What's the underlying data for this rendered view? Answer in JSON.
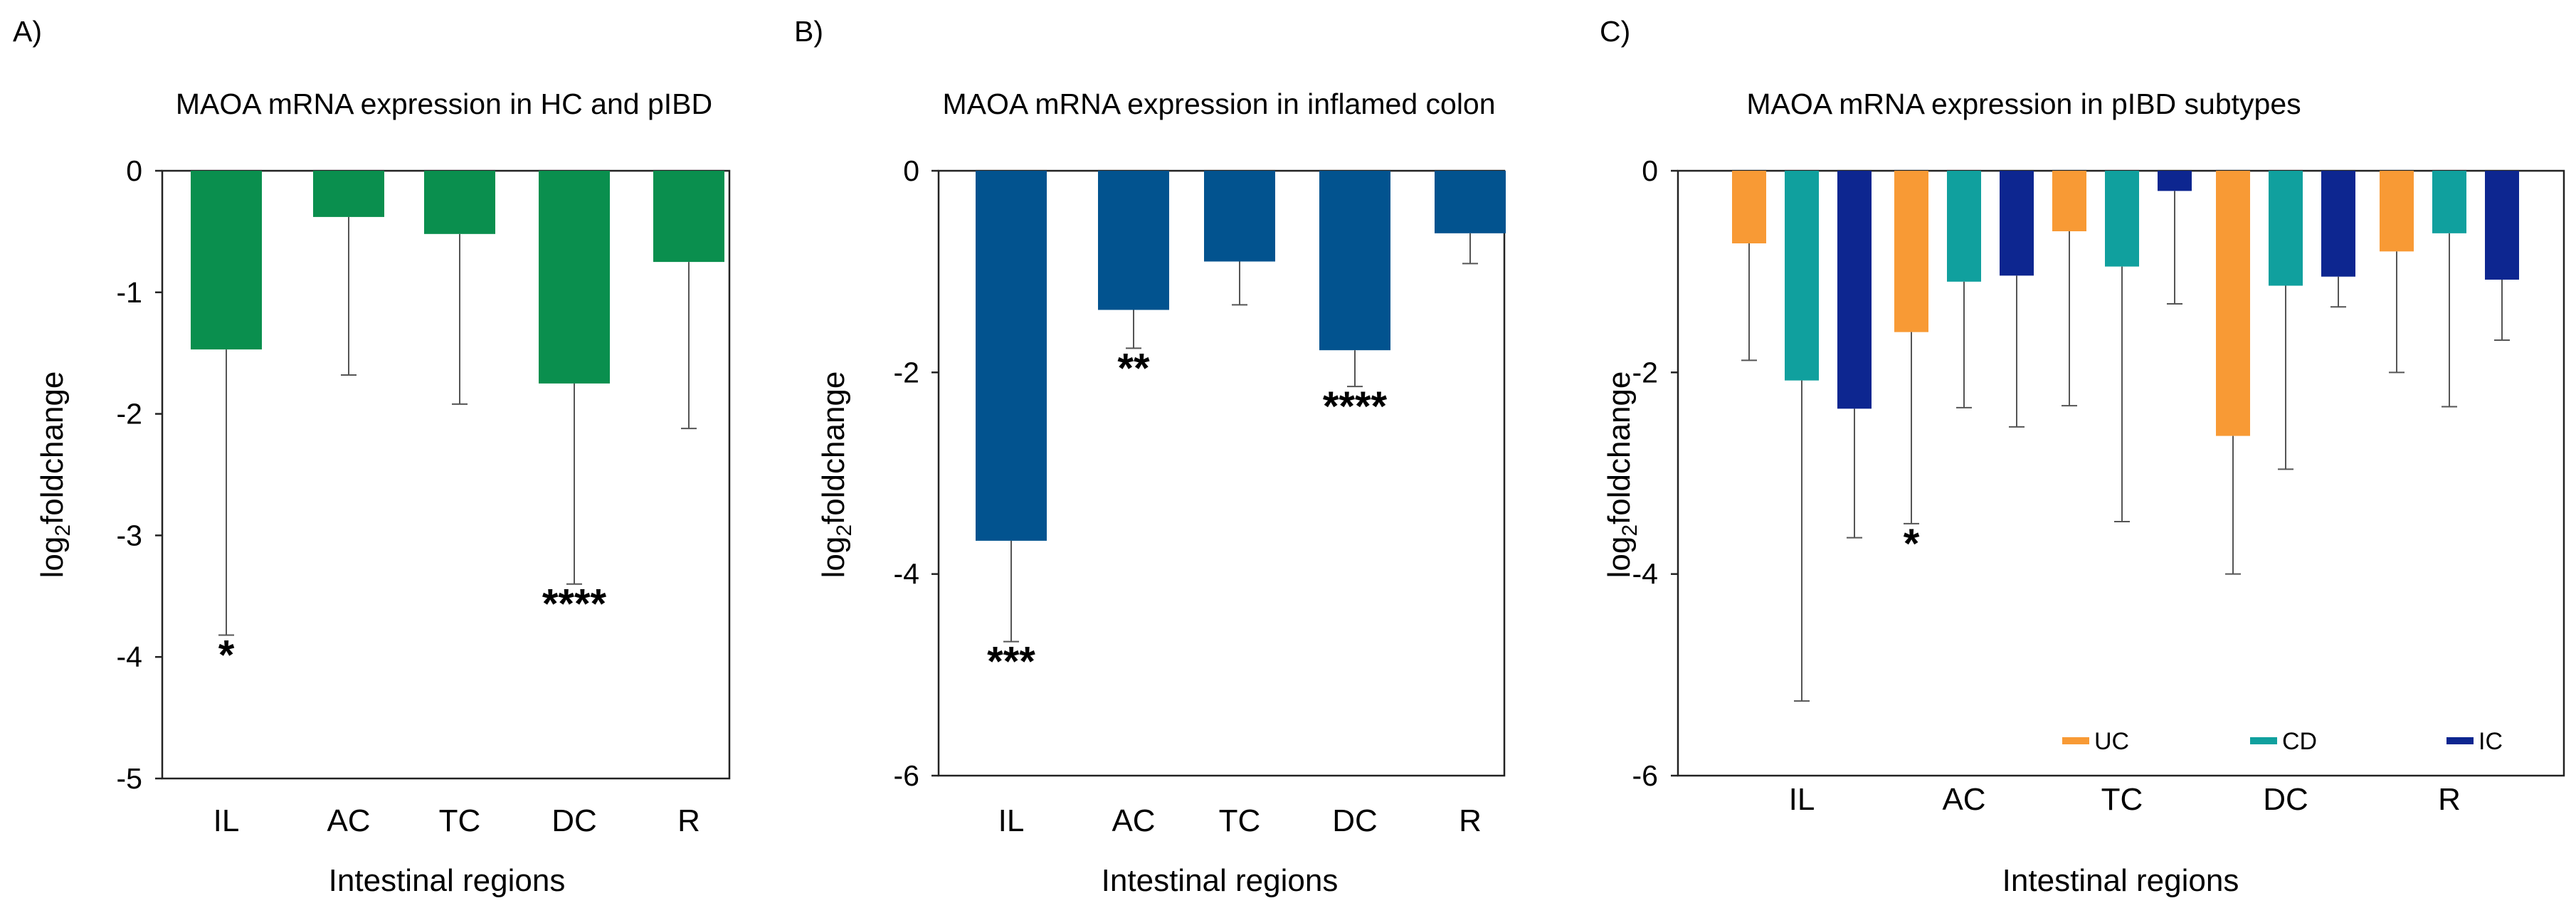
{
  "chart_data": [
    {
      "panel": "A)",
      "type": "bar",
      "title": "MAOA mRNA expression in HC and pIBD",
      "xlabel": "Intestinal regions",
      "ylabel_main": "log",
      "ylabel_sub": "2",
      "ylabel_rest": "foldchange",
      "ylim": [
        -5,
        0
      ],
      "yticks": [
        0,
        -1,
        -2,
        -3,
        -4,
        -5
      ],
      "categories": [
        "IL",
        "AC",
        "TC",
        "DC",
        "R"
      ],
      "series": [
        {
          "name": "pIBD",
          "color": "#0a8f4e",
          "values": [
            -1.47,
            -0.38,
            -0.52,
            -1.75,
            -0.75
          ],
          "errors": [
            2.35,
            1.3,
            1.4,
            1.65,
            1.37
          ],
          "significance": [
            "*",
            "",
            "",
            "****",
            ""
          ]
        }
      ]
    },
    {
      "panel": "B)",
      "type": "bar",
      "title": "MAOA mRNA expression in inflamed colon",
      "xlabel": "Intestinal regions",
      "ylabel_main": "log",
      "ylabel_sub": "2",
      "ylabel_rest": "foldchange",
      "ylim": [
        -6,
        0
      ],
      "yticks": [
        0,
        -2,
        -4,
        -6
      ],
      "categories": [
        "IL",
        "AC",
        "TC",
        "DC",
        "R"
      ],
      "series": [
        {
          "name": "Inflamed",
          "color": "#02538f",
          "values": [
            -3.67,
            -1.38,
            -0.9,
            -1.78,
            -0.62
          ],
          "errors": [
            1.0,
            0.38,
            0.43,
            0.36,
            0.3
          ],
          "significance": [
            "***",
            "**",
            "",
            "****",
            ""
          ]
        }
      ]
    },
    {
      "panel": "C)",
      "type": "bar",
      "title": "MAOA mRNA expression in pIBD subtypes",
      "xlabel": "Intestinal regions",
      "ylabel_main": "log",
      "ylabel_sub": "2",
      "ylabel_rest": "foldchange",
      "ylim": [
        -6,
        0
      ],
      "yticks": [
        0,
        -2,
        -4,
        -6
      ],
      "categories": [
        "IL",
        "AC",
        "TC",
        "DC",
        "R"
      ],
      "legend_position": "bottom-right",
      "series": [
        {
          "name": "UC",
          "color": "#f89a35",
          "values": [
            -0.72,
            -1.6,
            -0.6,
            -2.63,
            -0.8
          ],
          "errors": [
            1.16,
            1.9,
            1.73,
            1.37,
            1.2
          ],
          "significance": [
            "",
            "*",
            "",
            "",
            ""
          ]
        },
        {
          "name": "CD",
          "color": "#10a09e",
          "values": [
            -2.08,
            -1.1,
            -0.95,
            -1.14,
            -0.62
          ],
          "errors": [
            3.18,
            1.25,
            2.53,
            1.82,
            1.72
          ],
          "significance": [
            "",
            "",
            "",
            "",
            ""
          ]
        },
        {
          "name": "IC",
          "color": "#0d2690",
          "values": [
            -2.36,
            -1.04,
            -0.2,
            -1.05,
            -1.08
          ],
          "errors": [
            1.28,
            1.5,
            1.12,
            0.3,
            0.6
          ],
          "significance": [
            "",
            "",
            "",
            "",
            ""
          ]
        }
      ]
    }
  ]
}
